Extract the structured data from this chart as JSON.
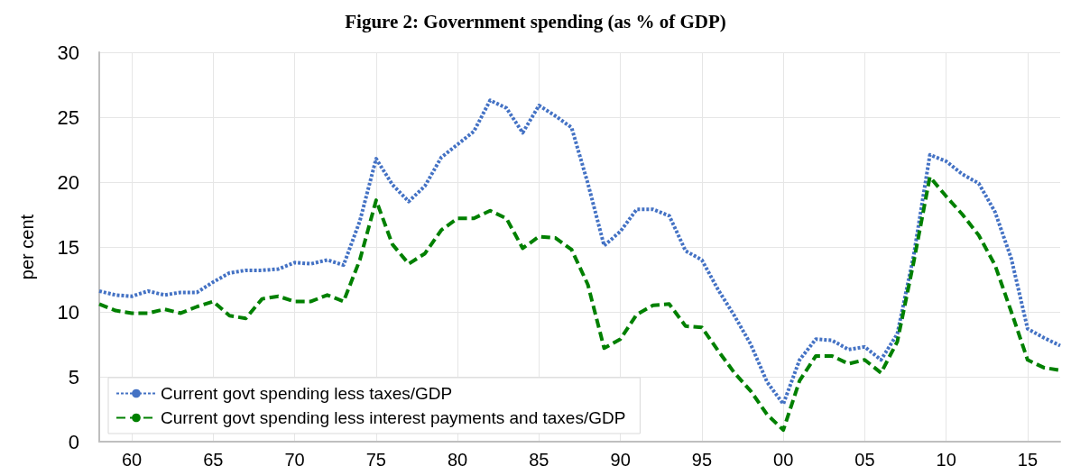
{
  "chart_data": {
    "type": "line",
    "title": "Figure 2: Government spending (as % of GDP)",
    "ylabel": "per cent",
    "x": [
      1958,
      1959,
      1960,
      1961,
      1962,
      1963,
      1964,
      1965,
      1966,
      1967,
      1968,
      1969,
      1970,
      1971,
      1972,
      1973,
      1974,
      1975,
      1976,
      1977,
      1978,
      1979,
      1980,
      1981,
      1982,
      1983,
      1984,
      1985,
      1986,
      1987,
      1988,
      1989,
      1990,
      1991,
      1992,
      1993,
      1994,
      1995,
      1996,
      1997,
      1998,
      1999,
      2000,
      2001,
      2002,
      2003,
      2004,
      2005,
      2006,
      2007,
      2008,
      2009,
      2010,
      2011,
      2012,
      2013,
      2014,
      2015,
      2016,
      2017
    ],
    "series": [
      {
        "name": "Current govt spending less taxes/GDP",
        "color": "#4472c4",
        "line_style": "dotted",
        "values": [
          11.6,
          11.3,
          11.2,
          11.6,
          11.3,
          11.5,
          11.5,
          12.3,
          13.0,
          13.2,
          13.2,
          13.3,
          13.8,
          13.7,
          14.0,
          13.6,
          17.0,
          21.8,
          19.8,
          18.5,
          19.7,
          21.9,
          22.9,
          23.9,
          26.3,
          25.7,
          23.8,
          25.9,
          25.1,
          24.2,
          19.9,
          15.1,
          16.2,
          17.9,
          17.9,
          17.4,
          14.7,
          14.0,
          11.7,
          9.7,
          7.5,
          4.6,
          2.9,
          6.3,
          7.9,
          7.8,
          7.1,
          7.3,
          6.3,
          8.3,
          14.3,
          22.1,
          21.6,
          20.6,
          19.9,
          17.7,
          14.1,
          8.7,
          8.0,
          7.4
        ]
      },
      {
        "name": "Current govt spending less interest payments and taxes/GDP",
        "color": "#008000",
        "line_style": "dashed",
        "values": [
          10.6,
          10.1,
          9.9,
          9.9,
          10.2,
          9.9,
          10.4,
          10.8,
          9.7,
          9.5,
          11.0,
          11.2,
          10.8,
          10.8,
          11.3,
          10.8,
          14.0,
          18.6,
          15.2,
          13.7,
          14.5,
          16.3,
          17.2,
          17.2,
          17.8,
          17.2,
          14.9,
          15.8,
          15.7,
          14.8,
          12.1,
          7.2,
          7.9,
          9.8,
          10.5,
          10.6,
          8.9,
          8.8,
          7.0,
          5.3,
          3.9,
          2.1,
          0.9,
          4.7,
          6.6,
          6.6,
          6.0,
          6.3,
          5.3,
          7.7,
          13.8,
          20.4,
          18.9,
          17.5,
          15.9,
          13.6,
          10.0,
          6.3,
          5.7,
          5.5
        ]
      }
    ],
    "xlim": [
      1958,
      2017
    ],
    "xticks": [
      {
        "value": 1960,
        "label": "60"
      },
      {
        "value": 1965,
        "label": "65"
      },
      {
        "value": 1970,
        "label": "70"
      },
      {
        "value": 1975,
        "label": "75"
      },
      {
        "value": 1980,
        "label": "80"
      },
      {
        "value": 1985,
        "label": "85"
      },
      {
        "value": 1990,
        "label": "90"
      },
      {
        "value": 1995,
        "label": "95"
      },
      {
        "value": 2000,
        "label": "00"
      },
      {
        "value": 2005,
        "label": "05"
      },
      {
        "value": 2010,
        "label": "10"
      },
      {
        "value": 2015,
        "label": "15"
      }
    ],
    "ylim": [
      0,
      30
    ],
    "yticks": [
      0,
      5,
      10,
      15,
      20,
      25,
      30
    ],
    "grid": true,
    "legend": "bottom left",
    "marker": "none"
  }
}
